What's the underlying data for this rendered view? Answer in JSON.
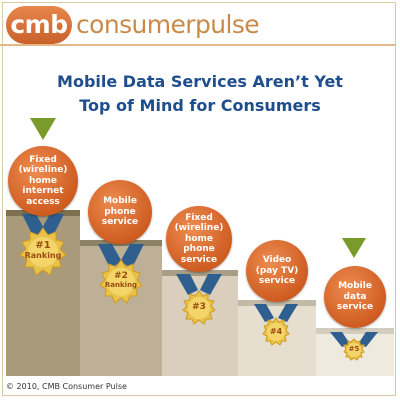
{
  "header": {
    "logo_text": "cmb",
    "brand_text": "consumerpulse"
  },
  "title": {
    "line1": "Mobile Data Services Aren’t Yet",
    "line2": "Top of Mind for Consumers"
  },
  "steps": [
    {
      "service": "Fixed (wireline) home internet access",
      "ranking": "#1",
      "ranking_word": "Ranking"
    },
    {
      "service": "Mobile phone service",
      "ranking": "#2",
      "ranking_word": "Ranking"
    },
    {
      "service": "Fixed (wireline) home phone service",
      "ranking": "#3"
    },
    {
      "service": "Video (pay TV) service",
      "ranking": "#4"
    },
    {
      "service": "Mobile data service",
      "ranking": "#5"
    }
  ],
  "colors": {
    "accent_orange": "#cf5d22",
    "title_blue": "#1f4e8c",
    "arrow_green": "#7a9a2a",
    "ribbon_blue": "#2f5f8f"
  },
  "footer": {
    "copyright": "© 2010, CMB Consumer Pulse"
  }
}
